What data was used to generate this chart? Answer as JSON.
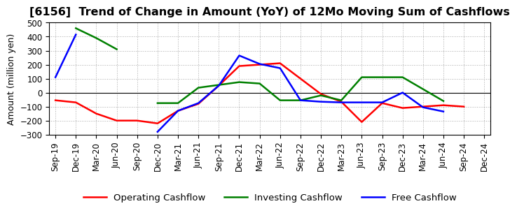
{
  "title": "[6156]  Trend of Change in Amount (YoY) of 12Mo Moving Sum of Cashflows",
  "ylabel": "Amount (million yen)",
  "x_labels": [
    "Sep-19",
    "Dec-19",
    "Mar-20",
    "Jun-20",
    "Sep-20",
    "Dec-20",
    "Mar-21",
    "Jun-21",
    "Sep-21",
    "Dec-21",
    "Mar-22",
    "Jun-22",
    "Sep-22",
    "Dec-22",
    "Mar-23",
    "Jun-23",
    "Sep-23",
    "Dec-23",
    "Mar-24",
    "Jun-24",
    "Sep-24",
    "Dec-24"
  ],
  "operating_cashflow": [
    -55,
    -70,
    -150,
    -200,
    -200,
    -220,
    -130,
    -80,
    50,
    190,
    200,
    210,
    100,
    -10,
    -65,
    -210,
    -75,
    -110,
    -100,
    -90,
    -100,
    null
  ],
  "investing_cashflow": [
    null,
    460,
    390,
    310,
    null,
    -75,
    -75,
    35,
    55,
    75,
    65,
    -55,
    -55,
    -20,
    -55,
    110,
    110,
    110,
    25,
    -60,
    null,
    null
  ],
  "free_cashflow": [
    110,
    415,
    null,
    null,
    null,
    -280,
    -130,
    -75,
    50,
    265,
    205,
    175,
    -55,
    -65,
    -70,
    -70,
    -70,
    0,
    -105,
    -135,
    null,
    null
  ],
  "ylim": [
    -300,
    500
  ],
  "yticks": [
    -300,
    -200,
    -100,
    0,
    100,
    200,
    300,
    400,
    500
  ],
  "operating_color": "#ff0000",
  "investing_color": "#008000",
  "free_color": "#0000ff",
  "background_color": "#ffffff",
  "grid_color": "#aaaaaa",
  "title_fontsize": 11.5,
  "axis_label_fontsize": 9,
  "tick_fontsize": 8.5,
  "legend_fontsize": 9.5,
  "linewidth": 1.8
}
